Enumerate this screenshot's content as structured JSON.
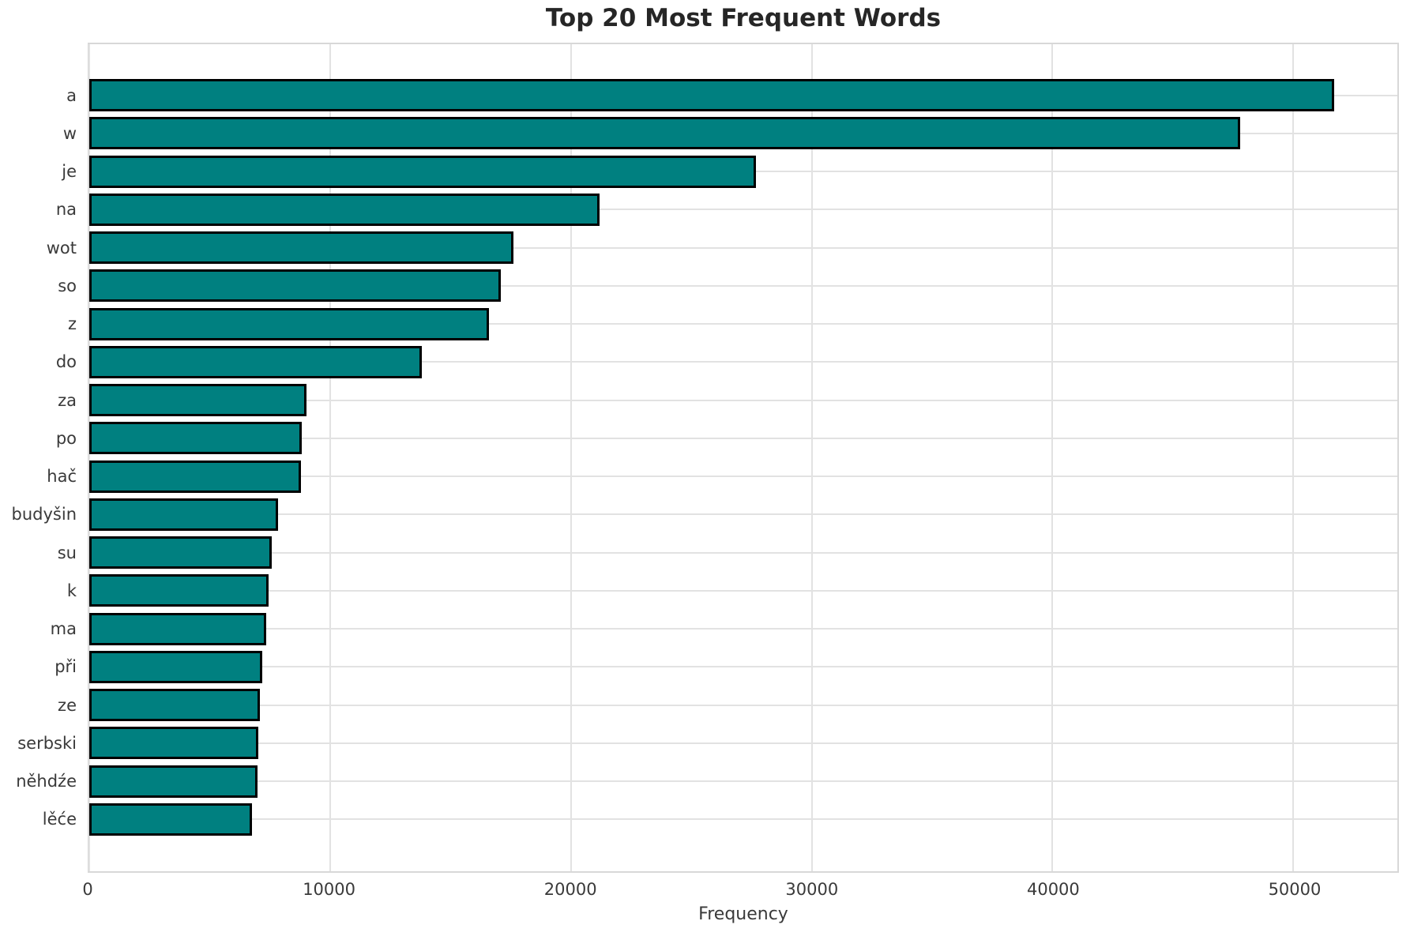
{
  "title": "Top 20 Most Frequent Words",
  "chart_data": {
    "type": "bar",
    "orientation": "horizontal",
    "title": "Top 20 Most Frequent Words",
    "xlabel": "Frequency",
    "ylabel": "",
    "categories": [
      "a",
      "w",
      "je",
      "na",
      "wot",
      "so",
      "z",
      "do",
      "za",
      "po",
      "hač",
      "budyšin",
      "su",
      "k",
      "ma",
      "při",
      "ze",
      "serbski",
      "něhdźe",
      "lěće"
    ],
    "values": [
      51700,
      47800,
      27700,
      21200,
      17600,
      17100,
      16600,
      13800,
      9020,
      8830,
      8790,
      7850,
      7580,
      7460,
      7360,
      7170,
      7080,
      7030,
      6990,
      6770
    ],
    "xlim": [
      0,
      54320
    ],
    "x_ticks": [
      0,
      10000,
      20000,
      30000,
      40000,
      50000
    ],
    "grid": true,
    "legend": "none",
    "bar_color": "#008080",
    "bar_edge_color": "#000000",
    "grid_color": "#e2e2e2"
  }
}
